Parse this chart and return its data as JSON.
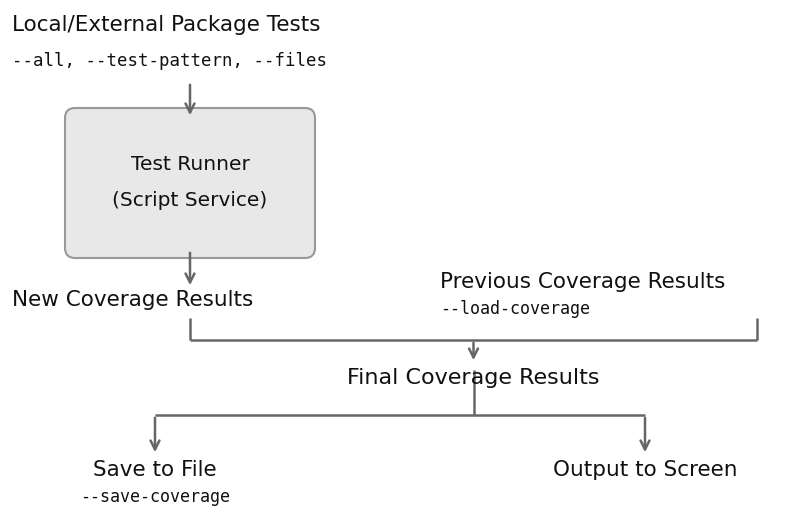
{
  "bg_color": "#ffffff",
  "arrow_color": "#666666",
  "text_color": "#111111",
  "box_fill": "#e8e8e8",
  "box_edge": "#999999",
  "title_top_line1": "Local/External Package Tests",
  "title_top_line2": "--all, --test-pattern, --files",
  "box_label_line1": "Test Runner",
  "box_label_line2": "(Script Service)",
  "new_coverage_label": "New Coverage Results",
  "prev_coverage_line1": "Previous Coverage Results",
  "prev_coverage_line2": "--load-coverage",
  "final_coverage_label": "Final Coverage Results",
  "save_label_line1": "Save to File",
  "save_label_line2": "--save-coverage",
  "screen_label": "Output to Screen",
  "fig_w": 8.07,
  "fig_h": 5.25,
  "dpi": 100
}
